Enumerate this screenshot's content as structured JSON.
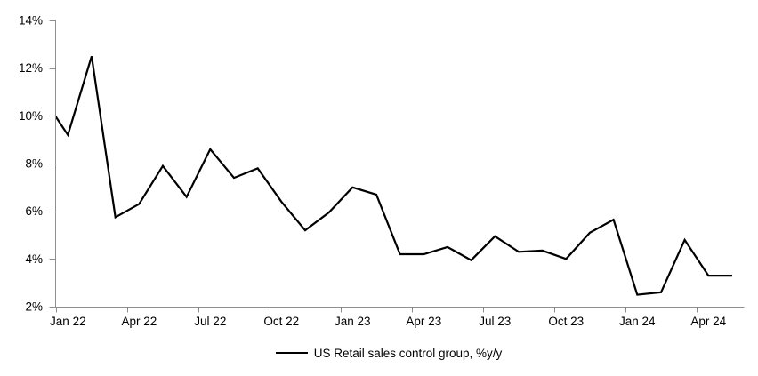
{
  "figure": {
    "background": "#ffffff",
    "title": ""
  },
  "chart_data": {
    "type": "line",
    "title": "",
    "grid": false,
    "legend_position": "bottom-center",
    "axis_color": "#8e8e8e",
    "text_color": "#000000",
    "ylim": [
      2,
      14
    ],
    "ytick_values": [
      14,
      12,
      10,
      8,
      6,
      4,
      2
    ],
    "ytick_labels": [
      "14%",
      "12%",
      "10%",
      "8%",
      "6%",
      "4%",
      "2%"
    ],
    "xtick_labels": [
      "Jan 22",
      "Apr 22",
      "Jul 22",
      "Oct 22",
      "Jan 23",
      "Apr 23",
      "Jul 23",
      "Oct 23",
      "Jan 24",
      "Apr 24"
    ],
    "categories": [
      "Jan 22",
      "Feb 22",
      "Mar 22",
      "Apr 22",
      "May 22",
      "Jun 22",
      "Jul 22",
      "Aug 22",
      "Sep 22",
      "Oct 22",
      "Nov 22",
      "Dec 22",
      "Jan 23",
      "Feb 23",
      "Mar 23",
      "Apr 23",
      "May 23",
      "Jun 23",
      "Jul 23",
      "Aug 23",
      "Sep 23",
      "Oct 23",
      "Nov 23",
      "Dec 23",
      "Jan 24",
      "Feb 24",
      "Mar 24",
      "Apr 24",
      "May 24"
    ],
    "series": [
      {
        "name": "US Retail sales control group, %y/y",
        "color": "#000000",
        "values": [
          9.2,
          12.5,
          5.75,
          6.3,
          7.9,
          6.6,
          8.6,
          7.4,
          7.8,
          6.4,
          5.2,
          5.95,
          7.0,
          6.7,
          4.2,
          4.2,
          4.5,
          3.95,
          4.95,
          4.3,
          4.35,
          4.0,
          5.1,
          5.65,
          2.5,
          2.6,
          4.8,
          3.3,
          3.3
        ]
      }
    ],
    "lead_in_point": {
      "x": "Dec 21",
      "value": 10.7,
      "note": "line enters plot clipped at the left axis at about 9.9%"
    }
  }
}
